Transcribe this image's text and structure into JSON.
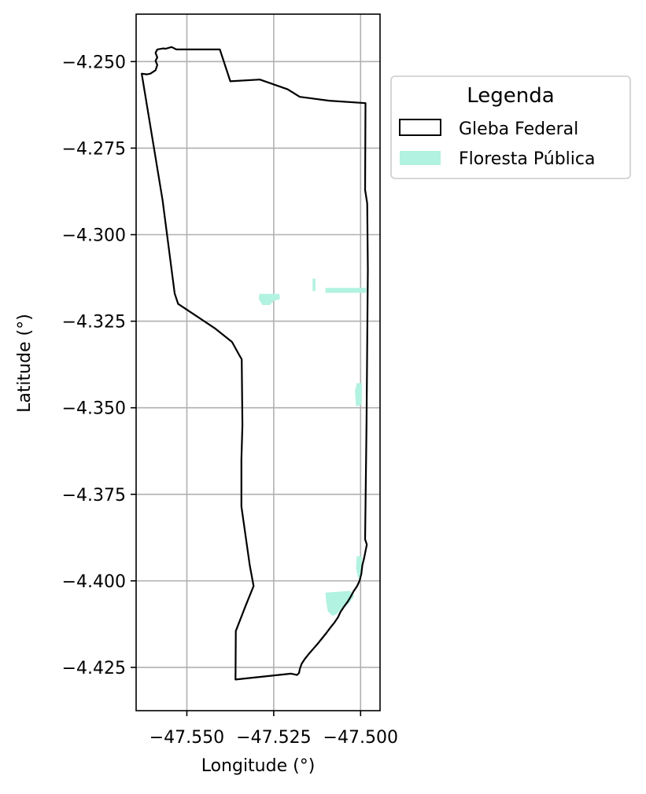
{
  "chart_data": {
    "type": "map",
    "xlabel": "Longitude (°)",
    "ylabel": "Latitude (°)",
    "xlim": [
      -47.5646,
      -47.4944
    ],
    "ylim": [
      -4.4375,
      -4.2363
    ],
    "xticks": [
      {
        "value": -47.55,
        "label": "−47.550"
      },
      {
        "value": -47.525,
        "label": "−47.525"
      },
      {
        "value": -47.5,
        "label": "−47.500"
      }
    ],
    "yticks": [
      {
        "value": -4.25,
        "label": "−4.250"
      },
      {
        "value": -4.275,
        "label": "−4.275"
      },
      {
        "value": -4.3,
        "label": "−4.300"
      },
      {
        "value": -4.325,
        "label": "−4.325"
      },
      {
        "value": -4.35,
        "label": "−4.350"
      },
      {
        "value": -4.375,
        "label": "−4.375"
      },
      {
        "value": -4.4,
        "label": "−4.400"
      },
      {
        "value": -4.425,
        "label": "−4.425"
      }
    ],
    "grid": true,
    "legend": {
      "title": "Legenda",
      "placement": "outside-top-right",
      "entries": [
        {
          "label": "Gleba Federal",
          "style": "outline",
          "edge_color": "#000000",
          "fill_color": "#ffffff"
        },
        {
          "label": "Floresta Pública",
          "style": "fill",
          "edge_color": "#b2f2e0",
          "fill_color": "#b2f2e0"
        }
      ]
    },
    "layers": {
      "gleba_federal": {
        "name": "Gleba Federal",
        "color": "#000000",
        "boundary": [
          [
            -47.563,
            -4.2535
          ],
          [
            -47.5615,
            -4.2537
          ],
          [
            -47.5605,
            -4.2535
          ],
          [
            -47.559,
            -4.2525
          ],
          [
            -47.5585,
            -4.251
          ],
          [
            -47.559,
            -4.2498
          ],
          [
            -47.5585,
            -4.2488
          ],
          [
            -47.559,
            -4.2475
          ],
          [
            -47.5585,
            -4.2465
          ],
          [
            -47.5568,
            -4.2462
          ],
          [
            -47.5561,
            -4.2463
          ],
          [
            -47.5544,
            -4.2458
          ],
          [
            -47.554,
            -4.246
          ],
          [
            -47.553,
            -4.2465
          ],
          [
            -47.5405,
            -4.2465
          ],
          [
            -47.5375,
            -4.2557
          ],
          [
            -47.529,
            -4.2552
          ],
          [
            -47.521,
            -4.258
          ],
          [
            -47.5175,
            -4.2602
          ],
          [
            -47.509,
            -4.2613
          ],
          [
            -47.4986,
            -4.262
          ],
          [
            -47.4987,
            -4.287
          ],
          [
            -47.4981,
            -4.291
          ],
          [
            -47.4979,
            -4.31
          ],
          [
            -47.4983,
            -4.355
          ],
          [
            -47.4987,
            -4.388
          ],
          [
            -47.4982,
            -4.3895
          ],
          [
            -47.4985,
            -4.391
          ],
          [
            -47.499,
            -4.3935
          ],
          [
            -47.4995,
            -4.3955
          ],
          [
            -47.4998,
            -4.398
          ],
          [
            -47.5003,
            -4.4
          ],
          [
            -47.501,
            -4.4015
          ],
          [
            -47.502,
            -4.403
          ],
          [
            -47.5028,
            -4.4045
          ],
          [
            -47.5037,
            -4.406
          ],
          [
            -47.5048,
            -4.4075
          ],
          [
            -47.5058,
            -4.409
          ],
          [
            -47.5065,
            -4.4105
          ],
          [
            -47.5075,
            -4.412
          ],
          [
            -47.5087,
            -4.4135
          ],
          [
            -47.5098,
            -4.415
          ],
          [
            -47.511,
            -4.4165
          ],
          [
            -47.5122,
            -4.418
          ],
          [
            -47.5135,
            -4.4195
          ],
          [
            -47.5148,
            -4.421
          ],
          [
            -47.516,
            -4.4225
          ],
          [
            -47.517,
            -4.424
          ],
          [
            -47.5175,
            -4.4255
          ],
          [
            -47.5177,
            -4.4266
          ],
          [
            -47.5183,
            -4.4272
          ],
          [
            -47.52,
            -4.4268
          ],
          [
            -47.536,
            -4.4285
          ],
          [
            -47.5359,
            -4.4145
          ],
          [
            -47.533,
            -4.407
          ],
          [
            -47.5308,
            -4.4015
          ],
          [
            -47.5319,
            -4.3955
          ],
          [
            -47.5343,
            -4.3785
          ],
          [
            -47.5343,
            -4.365
          ],
          [
            -47.534,
            -4.355
          ],
          [
            -47.5342,
            -4.336
          ],
          [
            -47.5348,
            -4.335
          ],
          [
            -47.537,
            -4.331
          ],
          [
            -47.542,
            -4.327
          ],
          [
            -47.548,
            -4.323
          ],
          [
            -47.5525,
            -4.32
          ],
          [
            -47.5535,
            -4.317
          ],
          [
            -47.557,
            -4.29
          ],
          [
            -47.563,
            -4.2535
          ]
        ]
      },
      "floresta_publica": {
        "name": "Floresta Pública",
        "color": "#b2f2e0",
        "patches": [
          [
            [
              -47.529,
              -4.3172
            ],
            [
              -47.5235,
              -4.3172
            ],
            [
              -47.5233,
              -4.3185
            ],
            [
              -47.525,
              -4.319
            ],
            [
              -47.5262,
              -4.3202
            ],
            [
              -47.5282,
              -4.3202
            ],
            [
              -47.5292,
              -4.3185
            ]
          ],
          [
            [
              -47.51,
              -4.3155
            ],
            [
              -47.4985,
              -4.3155
            ],
            [
              -47.4985,
              -4.3167
            ],
            [
              -47.51,
              -4.3167
            ]
          ],
          [
            [
              -47.5137,
              -4.3128
            ],
            [
              -47.5131,
              -4.3128
            ],
            [
              -47.5131,
              -4.3162
            ],
            [
              -47.5137,
              -4.3162
            ]
          ],
          [
            [
              -47.501,
              -4.343
            ],
            [
              -47.4997,
              -4.343
            ],
            [
              -47.4998,
              -4.349
            ],
            [
              -47.5012,
              -4.3495
            ],
            [
              -47.5015,
              -4.345
            ]
          ],
          [
            [
              -47.501,
              -4.393
            ],
            [
              -47.4997,
              -4.393
            ],
            [
              -47.4999,
              -4.398
            ],
            [
              -47.5006,
              -4.399
            ],
            [
              -47.5012,
              -4.3965
            ]
          ],
          [
            [
              -47.51,
              -4.4035
            ],
            [
              -47.503,
              -4.403
            ],
            [
              -47.502,
              -4.4045
            ],
            [
              -47.5035,
              -4.4065
            ],
            [
              -47.5055,
              -4.408
            ],
            [
              -47.507,
              -4.4095
            ],
            [
              -47.508,
              -4.41
            ],
            [
              -47.5093,
              -4.4088
            ],
            [
              -47.5098,
              -4.406
            ]
          ]
        ]
      }
    }
  }
}
